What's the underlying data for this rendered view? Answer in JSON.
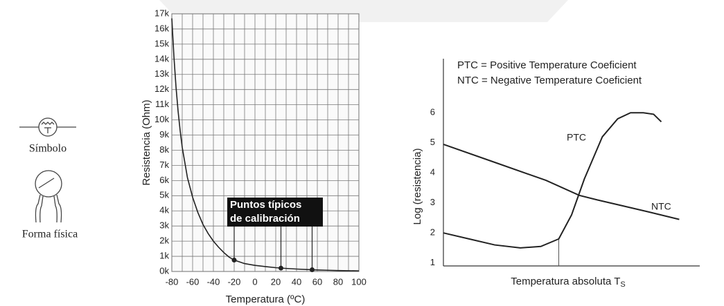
{
  "symbol_label": "Símbolo",
  "form_label": "Forma física",
  "chart_data": [
    {
      "type": "line",
      "xlabel": "Temperatura (ºC)",
      "ylabel": "Resistencia (Ohm)",
      "color": "#222222",
      "grid": true,
      "x": [
        -80,
        -78,
        -76,
        -74,
        -72,
        -70,
        -65,
        -60,
        -55,
        -50,
        -45,
        -40,
        -35,
        -30,
        -25,
        -20,
        -10,
        0,
        10,
        20,
        30,
        40,
        50,
        60,
        70,
        80,
        90,
        100
      ],
      "values": [
        16700,
        14200,
        12200,
        10600,
        9300,
        8200,
        6200,
        4900,
        3900,
        3100,
        2500,
        2000,
        1600,
        1250,
        950,
        750,
        520,
        400,
        320,
        250,
        200,
        160,
        130,
        100,
        80,
        60,
        50,
        40
      ],
      "xlim": [
        -80,
        100
      ],
      "xticks": [
        -80,
        -60,
        -40,
        -20,
        0,
        20,
        40,
        60,
        80,
        100
      ],
      "x_minor_grid": [
        -70,
        -50,
        -30,
        -10,
        10,
        30,
        50,
        70,
        90
      ],
      "ylim": [
        0,
        17000
      ],
      "yticks": [
        {
          "value": 0,
          "label": "0k"
        },
        {
          "value": 1000,
          "label": "1k"
        },
        {
          "value": 2000,
          "label": "2k"
        },
        {
          "value": 3000,
          "label": "3k"
        },
        {
          "value": 4000,
          "label": "4k"
        },
        {
          "value": 5000,
          "label": "5k"
        },
        {
          "value": 6000,
          "label": "6k"
        },
        {
          "value": 7000,
          "label": "7k"
        },
        {
          "value": 8000,
          "label": "8k"
        },
        {
          "value": 9000,
          "label": "9k"
        },
        {
          "value": 10000,
          "label": "10k"
        },
        {
          "value": 11000,
          "label": "11k"
        },
        {
          "value": 12000,
          "label": "12k"
        },
        {
          "value": 13000,
          "label": "13k"
        },
        {
          "value": 14000,
          "label": "14k"
        },
        {
          "value": 15000,
          "label": "15k"
        },
        {
          "value": 16000,
          "label": "16k"
        },
        {
          "value": 17000,
          "label": "17k"
        }
      ],
      "markers": {
        "x": [
          -20,
          25,
          55
        ],
        "values": [
          750,
          220,
          115
        ]
      },
      "annotation": [
        "Puntos típicos",
        "de calibración"
      ]
    },
    {
      "type": "line",
      "ylabel": "Log (resistencia)",
      "xlabel": "Temperatura absoluta T",
      "xlabel_subscript": "S",
      "legend": [
        "PTC = Positive Temperature Coeficient",
        "NTC = Negative Temperature Coeficient"
      ],
      "xlim": [
        0,
        100
      ],
      "ylim": [
        0.9,
        7.8
      ],
      "yticks": [
        1,
        2,
        3,
        4,
        5,
        6
      ],
      "vline": {
        "x": 45,
        "value": 1.8
      },
      "series": [
        {
          "name": "PTC",
          "color": "#222222",
          "x": [
            0,
            10,
            20,
            30,
            38,
            45,
            50,
            55,
            62,
            68,
            73,
            78,
            82,
            85
          ],
          "values": [
            2.0,
            1.8,
            1.6,
            1.5,
            1.55,
            1.8,
            2.6,
            3.8,
            5.2,
            5.8,
            6.0,
            6.0,
            5.95,
            5.7
          ]
        },
        {
          "name": "NTC",
          "color": "#222222",
          "x": [
            0,
            20,
            40,
            53,
            60,
            80,
            92
          ],
          "values": [
            4.95,
            4.35,
            3.75,
            3.25,
            3.1,
            2.7,
            2.45
          ]
        }
      ]
    }
  ]
}
